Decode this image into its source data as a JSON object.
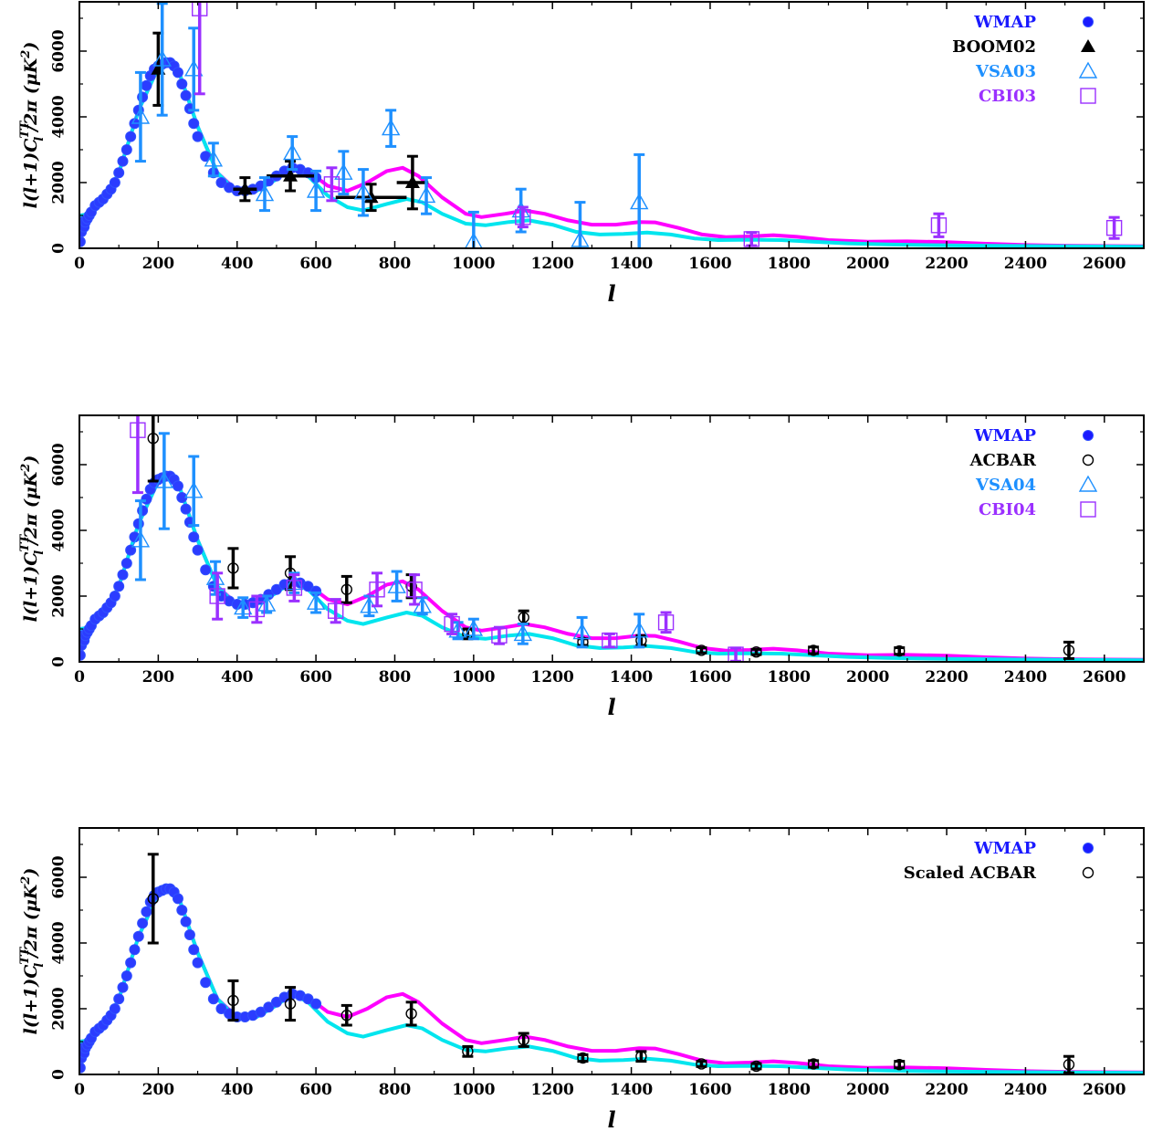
{
  "chart_data": [
    {
      "type": "scatter",
      "panel": "top",
      "xlabel": "l",
      "ylabel": "l(l+1)C_l^TT/2π (μK²)",
      "ylabel_parts": {
        "prefix": "l(l+1)C",
        "sup": "TT",
        "sub": "l",
        "mid": "/2π (μK",
        "sup2": "2",
        "suffix": ")"
      },
      "xlim": [
        0,
        2700
      ],
      "ylim": [
        0,
        7500
      ],
      "xticks": [
        0,
        200,
        400,
        600,
        800,
        1000,
        1200,
        1400,
        1600,
        1800,
        2000,
        2200,
        2400,
        2600
      ],
      "yticks": [
        0,
        2000,
        4000,
        6000
      ],
      "legend_position": "top-right",
      "legend": [
        {
          "label": "WMAP",
          "color": "#1a1aff",
          "marker": "filled-circle"
        },
        {
          "label": "BOOM02",
          "color": "#000000",
          "marker": "filled-triangle"
        },
        {
          "label": "VSA03",
          "color": "#1e90ff",
          "marker": "open-triangle"
        },
        {
          "label": "CBI03",
          "color": "#9b30ff",
          "marker": "open-square"
        }
      ],
      "series": [
        {
          "name": "BOOM02",
          "color": "#000000",
          "marker": "filled-triangle",
          "points": [
            [
              200,
              5450,
              1100,
              0
            ],
            [
              420,
              1800,
              350,
              30
            ],
            [
              535,
              2200,
              450,
              60
            ],
            [
              740,
              1550,
              400,
              90
            ],
            [
              845,
              2000,
              800,
              40
            ]
          ]
        },
        {
          "name": "VSA03",
          "color": "#1e90ff",
          "marker": "open-triangle",
          "points": [
            [
              155,
              4000,
              1350,
              0
            ],
            [
              210,
              5750,
              1700,
              0
            ],
            [
              290,
              5450,
              1250,
              0
            ],
            [
              340,
              2700,
              500,
              0
            ],
            [
              470,
              1650,
              500,
              0
            ],
            [
              540,
              2900,
              500,
              0
            ],
            [
              600,
              1750,
              600,
              0
            ],
            [
              670,
              2300,
              650,
              0
            ],
            [
              720,
              1700,
              700,
              0
            ],
            [
              790,
              3650,
              550,
              0
            ],
            [
              880,
              1600,
              550,
              0
            ],
            [
              1000,
              200,
              900,
              0
            ],
            [
              1120,
              1150,
              650,
              0
            ],
            [
              1270,
              250,
              1150,
              0
            ],
            [
              1420,
              1400,
              1450,
              0
            ]
          ]
        },
        {
          "name": "CBI03",
          "color": "#9b30ff",
          "marker": "open-square",
          "points": [
            [
              305,
              7300,
              2600,
              0
            ],
            [
              640,
              1950,
              500,
              0
            ],
            [
              1125,
              950,
              300,
              0
            ],
            [
              1705,
              280,
              200,
              0
            ],
            [
              2180,
              700,
              350,
              0
            ],
            [
              2625,
              620,
              320,
              0
            ]
          ]
        }
      ]
    },
    {
      "type": "scatter",
      "panel": "middle",
      "xlabel": "l",
      "ylabel": "l(l+1)C_l^TT/2π (μK²)",
      "ylabel_parts": {
        "prefix": "l(l+1)C",
        "sup": "TT",
        "sub": "l",
        "mid": "/2π (μK",
        "sup2": "2",
        "suffix": ")"
      },
      "xlim": [
        0,
        2700
      ],
      "ylim": [
        0,
        7500
      ],
      "xticks": [
        0,
        200,
        400,
        600,
        800,
        1000,
        1200,
        1400,
        1600,
        1800,
        2000,
        2200,
        2400,
        2600
      ],
      "yticks": [
        0,
        2000,
        4000,
        6000
      ],
      "legend_position": "top-right",
      "legend": [
        {
          "label": "WMAP",
          "color": "#1a1aff",
          "marker": "filled-circle"
        },
        {
          "label": "ACBAR",
          "color": "#000000",
          "marker": "open-circle"
        },
        {
          "label": "VSA04",
          "color": "#1e90ff",
          "marker": "open-triangle"
        },
        {
          "label": "CBI04",
          "color": "#9b30ff",
          "marker": "open-square"
        }
      ],
      "series": [
        {
          "name": "ACBAR",
          "color": "#000000",
          "marker": "open-circle",
          "points": [
            [
              187,
              6800,
              1300,
              0
            ],
            [
              390,
              2850,
              600,
              0
            ],
            [
              535,
              2700,
              500,
              0
            ],
            [
              678,
              2200,
              400,
              0
            ],
            [
              842,
              2300,
              350,
              0
            ],
            [
              985,
              850,
              150,
              0
            ],
            [
              1127,
              1350,
              200,
              0
            ],
            [
              1277,
              600,
              100,
              0
            ],
            [
              1425,
              650,
              150,
              0
            ],
            [
              1578,
              350,
              80,
              0
            ],
            [
              1717,
              300,
              80,
              0
            ],
            [
              1862,
              350,
              100,
              0
            ],
            [
              2080,
              330,
              100,
              0
            ],
            [
              2510,
              350,
              250,
              0
            ]
          ]
        },
        {
          "name": "VSA04",
          "color": "#1e90ff",
          "marker": "open-triangle",
          "points": [
            [
              155,
              3700,
              1200,
              0
            ],
            [
              215,
              5500,
              1450,
              0
            ],
            [
              290,
              5200,
              1050,
              0
            ],
            [
              345,
              2550,
              500,
              0
            ],
            [
              415,
              1650,
              300,
              0
            ],
            [
              475,
              1750,
              250,
              0
            ],
            [
              545,
              2400,
              300,
              0
            ],
            [
              600,
              1800,
              300,
              0
            ],
            [
              735,
              1700,
              300,
              0
            ],
            [
              805,
              2300,
              450,
              0
            ],
            [
              870,
              1700,
              250,
              0
            ],
            [
              960,
              950,
              250,
              0
            ],
            [
              1000,
              1000,
              300,
              0
            ],
            [
              1125,
              850,
              300,
              0
            ],
            [
              1275,
              900,
              450,
              0
            ],
            [
              1420,
              950,
              500,
              0
            ]
          ]
        },
        {
          "name": "CBI04",
          "color": "#9b30ff",
          "marker": "open-square",
          "points": [
            [
              148,
              7050,
              1900,
              0
            ],
            [
              350,
              2000,
              700,
              0
            ],
            [
              450,
              1600,
              400,
              0
            ],
            [
              545,
              2250,
              400,
              0
            ],
            [
              650,
              1550,
              350,
              0
            ],
            [
              755,
              2200,
              500,
              0
            ],
            [
              850,
              2200,
              450,
              0
            ],
            [
              945,
              1150,
              300,
              0
            ],
            [
              1065,
              800,
              250,
              0
            ],
            [
              1345,
              650,
              200,
              0
            ],
            [
              1488,
              1200,
              300,
              0
            ],
            [
              1665,
              220,
              200,
              0
            ]
          ]
        }
      ]
    },
    {
      "type": "scatter",
      "panel": "bottom",
      "xlabel": "l",
      "ylabel": "l(l+1)C_l^TT/2π (μK²)",
      "ylabel_parts": {
        "prefix": "l(l+1)C",
        "sup": "TT",
        "sub": "l",
        "mid": "/2π (μK",
        "sup2": "2",
        "suffix": ")"
      },
      "xlim": [
        0,
        2700
      ],
      "ylim": [
        0,
        7500
      ],
      "xticks": [
        0,
        200,
        400,
        600,
        800,
        1000,
        1200,
        1400,
        1600,
        1800,
        2000,
        2200,
        2400,
        2600
      ],
      "yticks": [
        0,
        2000,
        4000,
        6000
      ],
      "legend_position": "top-right",
      "legend": [
        {
          "label": "WMAP",
          "color": "#1a1aff",
          "marker": "filled-circle"
        },
        {
          "label": "Scaled ACBAR",
          "color": "#000000",
          "marker": "open-circle"
        }
      ],
      "series": [
        {
          "name": "Scaled ACBAR",
          "color": "#000000",
          "marker": "open-circle",
          "points": [
            [
              187,
              5350,
              1350,
              0
            ],
            [
              390,
              2250,
              600,
              0
            ],
            [
              535,
              2150,
              500,
              0
            ],
            [
              678,
              1800,
              300,
              0
            ],
            [
              842,
              1850,
              350,
              0
            ],
            [
              985,
              700,
              150,
              0
            ],
            [
              1127,
              1050,
              200,
              0
            ],
            [
              1277,
              500,
              100,
              0
            ],
            [
              1425,
              550,
              150,
              0
            ],
            [
              1578,
              320,
              80,
              0
            ],
            [
              1717,
              250,
              80,
              0
            ],
            [
              1862,
              320,
              100,
              0
            ],
            [
              2080,
              300,
              100,
              0
            ],
            [
              2510,
              300,
              250,
              0
            ]
          ]
        }
      ]
    }
  ],
  "wmap_points": [
    [
      2,
      200
    ],
    [
      5,
      500
    ],
    [
      8,
      800
    ],
    [
      12,
      650
    ],
    [
      15,
      800
    ],
    [
      20,
      900
    ],
    [
      25,
      1000
    ],
    [
      30,
      1100
    ],
    [
      40,
      1300
    ],
    [
      50,
      1400
    ],
    [
      60,
      1500
    ],
    [
      70,
      1650
    ],
    [
      80,
      1800
    ],
    [
      90,
      2000
    ],
    [
      100,
      2300
    ],
    [
      110,
      2650
    ],
    [
      120,
      3000
    ],
    [
      130,
      3400
    ],
    [
      140,
      3800
    ],
    [
      150,
      4200
    ],
    [
      160,
      4600
    ],
    [
      170,
      4950
    ],
    [
      180,
      5250
    ],
    [
      190,
      5450
    ],
    [
      200,
      5550
    ],
    [
      210,
      5600
    ],
    [
      220,
      5650
    ],
    [
      230,
      5650
    ],
    [
      240,
      5550
    ],
    [
      250,
      5350
    ],
    [
      260,
      5000
    ],
    [
      270,
      4650
    ],
    [
      280,
      4250
    ],
    [
      290,
      3800
    ],
    [
      300,
      3400
    ],
    [
      320,
      2800
    ],
    [
      340,
      2300
    ],
    [
      360,
      2000
    ],
    [
      380,
      1850
    ],
    [
      400,
      1750
    ],
    [
      420,
      1750
    ],
    [
      440,
      1800
    ],
    [
      460,
      1900
    ],
    [
      480,
      2050
    ],
    [
      500,
      2200
    ],
    [
      520,
      2350
    ],
    [
      540,
      2450
    ],
    [
      560,
      2400
    ],
    [
      580,
      2300
    ],
    [
      600,
      2150
    ]
  ],
  "model_curves": [
    {
      "color": "#ff00ff",
      "points": [
        [
          2,
          1000
        ],
        [
          30,
          1050
        ],
        [
          60,
          1400
        ],
        [
          100,
          2300
        ],
        [
          150,
          4200
        ],
        [
          200,
          5500
        ],
        [
          225,
          5650
        ],
        [
          250,
          5450
        ],
        [
          300,
          3700
        ],
        [
          350,
          2300
        ],
        [
          400,
          1750
        ],
        [
          450,
          1850
        ],
        [
          500,
          2200
        ],
        [
          540,
          2550
        ],
        [
          580,
          2350
        ],
        [
          630,
          1900
        ],
        [
          680,
          1750
        ],
        [
          730,
          2000
        ],
        [
          780,
          2350
        ],
        [
          820,
          2450
        ],
        [
          860,
          2200
        ],
        [
          920,
          1550
        ],
        [
          980,
          1050
        ],
        [
          1020,
          950
        ],
        [
          1080,
          1050
        ],
        [
          1130,
          1150
        ],
        [
          1180,
          1050
        ],
        [
          1240,
          850
        ],
        [
          1300,
          720
        ],
        [
          1360,
          720
        ],
        [
          1420,
          800
        ],
        [
          1460,
          790
        ],
        [
          1520,
          620
        ],
        [
          1580,
          420
        ],
        [
          1640,
          340
        ],
        [
          1700,
          360
        ],
        [
          1760,
          400
        ],
        [
          1820,
          350
        ],
        [
          1900,
          250
        ],
        [
          2000,
          200
        ],
        [
          2100,
          210
        ],
        [
          2200,
          190
        ],
        [
          2300,
          140
        ],
        [
          2400,
          100
        ],
        [
          2500,
          80
        ],
        [
          2600,
          70
        ],
        [
          2700,
          60
        ]
      ]
    },
    {
      "color": "#00e5ee",
      "points": [
        [
          2,
          1000
        ],
        [
          30,
          1050
        ],
        [
          60,
          1400
        ],
        [
          100,
          2300
        ],
        [
          150,
          4200
        ],
        [
          200,
          5500
        ],
        [
          225,
          5650
        ],
        [
          250,
          5450
        ],
        [
          300,
          3700
        ],
        [
          350,
          2300
        ],
        [
          400,
          1700
        ],
        [
          450,
          1750
        ],
        [
          500,
          2100
        ],
        [
          540,
          2450
        ],
        [
          580,
          2200
        ],
        [
          630,
          1600
        ],
        [
          680,
          1250
        ],
        [
          720,
          1150
        ],
        [
          780,
          1350
        ],
        [
          830,
          1500
        ],
        [
          870,
          1400
        ],
        [
          920,
          1050
        ],
        [
          980,
          750
        ],
        [
          1030,
          700
        ],
        [
          1090,
          800
        ],
        [
          1140,
          850
        ],
        [
          1200,
          720
        ],
        [
          1260,
          500
        ],
        [
          1320,
          420
        ],
        [
          1380,
          440
        ],
        [
          1440,
          480
        ],
        [
          1500,
          420
        ],
        [
          1560,
          300
        ],
        [
          1620,
          250
        ],
        [
          1700,
          260
        ],
        [
          1780,
          250
        ],
        [
          1860,
          200
        ],
        [
          1950,
          150
        ],
        [
          2050,
          120
        ],
        [
          2200,
          90
        ],
        [
          2400,
          70
        ],
        [
          2600,
          55
        ],
        [
          2700,
          50
        ]
      ]
    }
  ]
}
